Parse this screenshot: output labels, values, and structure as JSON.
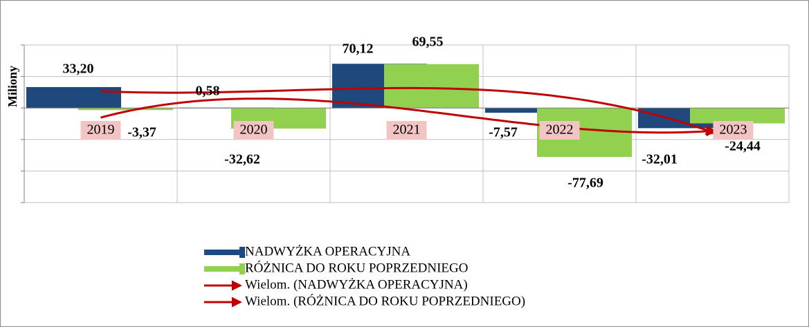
{
  "chart_data": {
    "type": "bar",
    "y_axis_label": "Miliony",
    "categories": [
      "2019",
      "2020",
      "2021",
      "2022",
      "2023"
    ],
    "series": [
      {
        "name": "NADWYŻKA OPERACYJNA",
        "color": "#1f497d",
        "values": [
          33.2,
          0.58,
          70.12,
          -7.57,
          -32.01
        ],
        "value_labels": [
          "33,20",
          "0,58",
          "70,12",
          "-7,57",
          "-32,01"
        ],
        "trendline": {
          "name": "Wielom. (NADWYŻKA OPERACYJNA)",
          "color": "#c00000"
        }
      },
      {
        "name": "RÓŻNICA DO ROKU POPRZEDNIEGO",
        "color": "#92d050",
        "values": [
          -3.37,
          -32.62,
          69.55,
          -77.69,
          -24.44
        ],
        "value_labels": [
          "-3,37",
          "-32,62",
          "69,55",
          "-77,69",
          "-24,44"
        ],
        "trendline": {
          "name": "Wielom. (RÓŻNICA DO ROKU POPRZEDNIEGO)",
          "color": "#c00000"
        }
      }
    ],
    "ylim": [
      -150,
      100
    ],
    "yticks": [
      -150,
      -100,
      -50,
      0,
      50,
      100
    ],
    "grid": true
  }
}
